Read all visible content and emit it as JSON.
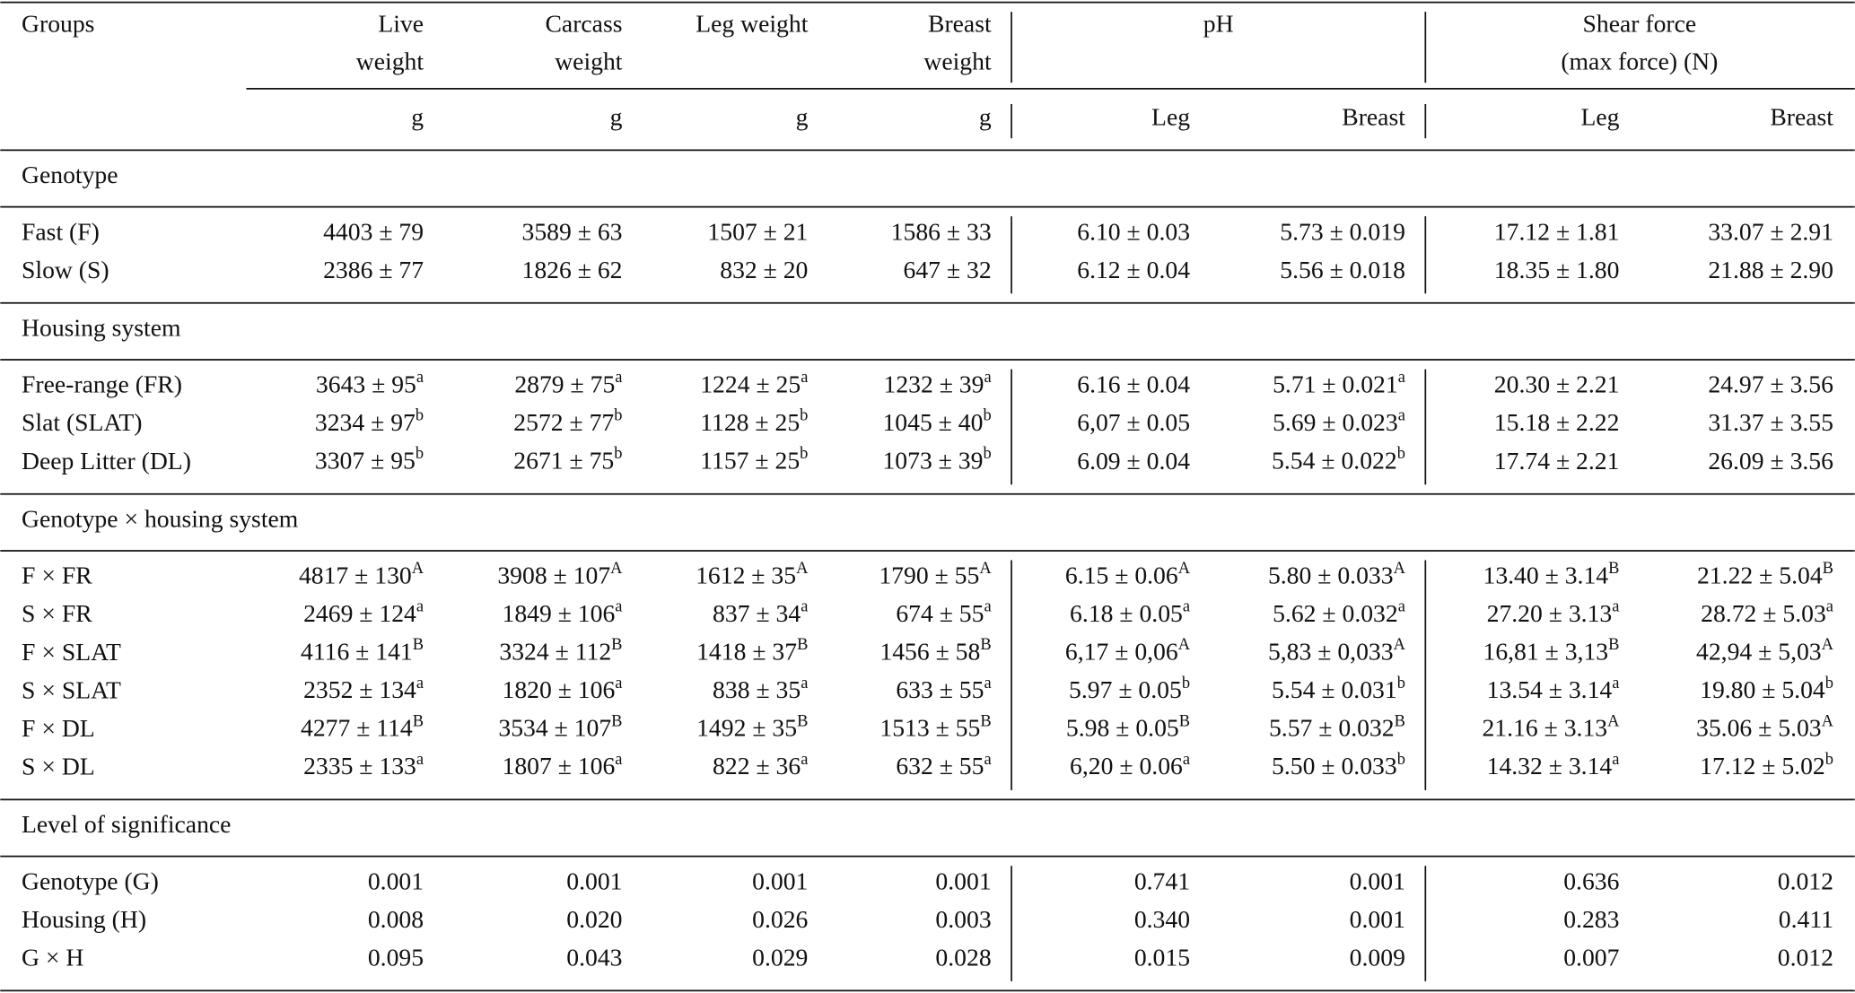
{
  "header": {
    "groups": "Groups",
    "weights": [
      [
        "Live",
        "weight"
      ],
      [
        "Carcass",
        "weight"
      ],
      [
        "Leg weight"
      ],
      [
        "Breast",
        "weight"
      ]
    ],
    "ph": "pH",
    "shear_force": [
      "Shear force",
      "(max force) (N)"
    ]
  },
  "units": [
    "g",
    "g",
    "g",
    "g",
    "Leg",
    "Breast",
    "Leg",
    "Breast"
  ],
  "sections": [
    {
      "title": "Genotype",
      "rows": [
        {
          "label": "Fast (F)",
          "cells": [
            "4403 ± 79",
            "3589 ± 63",
            "1507 ± 21",
            "1586 ± 33",
            "6.10 ± 0.03",
            "5.73 ± 0.019",
            "17.12 ± 1.81",
            "33.07 ± 2.91"
          ]
        },
        {
          "label": "Slow (S)",
          "cells": [
            "2386 ± 77",
            "1826 ± 62",
            "832 ± 20",
            "647 ± 32",
            "6.12 ± 0.04",
            "5.56 ± 0.018",
            "18.35 ± 1.80",
            "21.88 ± 2.90"
          ]
        }
      ]
    },
    {
      "title": "Housing system",
      "rows": [
        {
          "label": "Free-range (FR)",
          "cells": [
            {
              "text": "3643 ± 95",
              "sup": "a"
            },
            {
              "text": "2879 ± 75",
              "sup": "a"
            },
            {
              "text": "1224 ± 25",
              "sup": "a"
            },
            {
              "text": "1232 ± 39",
              "sup": "a"
            },
            "6.16 ± 0.04",
            {
              "text": "5.71 ± 0.021",
              "sup": "a"
            },
            "20.30 ± 2.21",
            "24.97 ± 3.56"
          ]
        },
        {
          "label": "Slat (SLAT)",
          "cells": [
            {
              "text": "3234 ± 97",
              "sup": "b"
            },
            {
              "text": "2572 ± 77",
              "sup": "b"
            },
            {
              "text": "1128 ± 25",
              "sup": "b"
            },
            {
              "text": "1045 ± 40",
              "sup": "b"
            },
            "6,07 ± 0.05",
            {
              "text": "5.69 ± 0.023",
              "sup": "a"
            },
            "15.18 ± 2.22",
            "31.37 ± 3.55"
          ]
        },
        {
          "label": "Deep Litter (DL)",
          "cells": [
            {
              "text": "3307 ± 95",
              "sup": "b"
            },
            {
              "text": "2671 ± 75",
              "sup": "b"
            },
            {
              "text": "1157 ± 25",
              "sup": "b"
            },
            {
              "text": "1073 ± 39",
              "sup": "b"
            },
            "6.09 ± 0.04",
            {
              "text": "5.54 ± 0.022",
              "sup": "b"
            },
            "17.74 ± 2.21",
            "26.09 ± 3.56"
          ]
        }
      ]
    },
    {
      "title": "Genotype × housing system",
      "rows": [
        {
          "label": "F × FR",
          "cells": [
            {
              "text": "4817 ± 130",
              "sup": "A"
            },
            {
              "text": "3908 ± 107",
              "sup": "A"
            },
            {
              "text": "1612 ± 35",
              "sup": "A"
            },
            {
              "text": "1790 ± 55",
              "sup": "A"
            },
            {
              "text": "6.15 ± 0.06",
              "sup": "A"
            },
            {
              "text": "5.80 ± 0.033",
              "sup": "A"
            },
            {
              "text": "13.40 ± 3.14",
              "sup": "B"
            },
            {
              "text": "21.22 ± 5.04",
              "sup": "B"
            }
          ]
        },
        {
          "label": "S × FR",
          "cells": [
            {
              "text": "2469 ± 124",
              "sup": "a"
            },
            {
              "text": "1849 ± 106",
              "sup": "a"
            },
            {
              "text": "837 ± 34",
              "sup": "a"
            },
            {
              "text": "674 ± 55",
              "sup": "a"
            },
            {
              "text": "6.18 ± 0.05",
              "sup": "a"
            },
            {
              "text": "5.62 ± 0.032",
              "sup": "a"
            },
            {
              "text": "27.20 ± 3.13",
              "sup": "a"
            },
            {
              "text": "28.72 ± 5.03",
              "sup": "a"
            }
          ]
        },
        {
          "label": "F × SLAT",
          "cells": [
            {
              "text": "4116 ± 141",
              "sup": "B"
            },
            {
              "text": "3324 ± 112",
              "sup": "B"
            },
            {
              "text": "1418 ± 37",
              "sup": "B"
            },
            {
              "text": "1456 ± 58",
              "sup": "B"
            },
            {
              "text": "6,17 ± 0,06",
              "sup": "A"
            },
            {
              "text": "5,83 ± 0,033",
              "sup": "A"
            },
            {
              "text": "16,81 ± 3,13",
              "sup": "B"
            },
            {
              "text": "42,94 ± 5,03",
              "sup": "A"
            }
          ]
        },
        {
          "label": "S × SLAT",
          "cells": [
            {
              "text": "2352 ± 134",
              "sup": "a"
            },
            {
              "text": "1820 ± 106",
              "sup": "a"
            },
            {
              "text": "838 ± 35",
              "sup": "a"
            },
            {
              "text": "633 ± 55",
              "sup": "a"
            },
            {
              "text": "5.97 ± 0.05",
              "sup": "b"
            },
            {
              "text": "5.54 ± 0.031",
              "sup": "b"
            },
            {
              "text": "13.54 ± 3.14",
              "sup": "a"
            },
            {
              "text": "19.80 ± 5.04",
              "sup": "b"
            }
          ]
        },
        {
          "label": "F × DL",
          "cells": [
            {
              "text": "4277 ± 114",
              "sup": "B"
            },
            {
              "text": "3534 ± 107",
              "sup": "B"
            },
            {
              "text": "1492 ± 35",
              "sup": "B"
            },
            {
              "text": "1513 ± 55",
              "sup": "B"
            },
            {
              "text": "5.98 ± 0.05",
              "sup": "B"
            },
            {
              "text": "5.57 ± 0.032",
              "sup": "B"
            },
            {
              "text": "21.16 ± 3.13",
              "sup": "A"
            },
            {
              "text": "35.06 ± 5.03",
              "sup": "A"
            }
          ]
        },
        {
          "label": "S × DL",
          "cells": [
            {
              "text": "2335 ± 133",
              "sup": "a"
            },
            {
              "text": "1807 ± 106",
              "sup": "a"
            },
            {
              "text": "822 ± 36",
              "sup": "a"
            },
            {
              "text": "632 ± 55",
              "sup": "a"
            },
            {
              "text": "6,20 ± 0.06",
              "sup": "a"
            },
            {
              "text": "5.50 ± 0.033",
              "sup": "b"
            },
            {
              "text": "14.32 ± 3.14",
              "sup": "a"
            },
            {
              "text": "17.12 ± 5.02",
              "sup": "b"
            }
          ]
        }
      ]
    },
    {
      "title": "Level of significance",
      "rows": [
        {
          "label": "Genotype (G)",
          "cells": [
            "0.001",
            "0.001",
            "0.001",
            "0.001",
            "0.741",
            "0.001",
            "0.636",
            "0.012"
          ]
        },
        {
          "label": "Housing (H)",
          "cells": [
            "0.008",
            "0.020",
            "0.026",
            "0.003",
            "0.340",
            "0.001",
            "0.283",
            "0.411"
          ]
        },
        {
          "label": "G × H",
          "cells": [
            "0.095",
            "0.043",
            "0.029",
            "0.028",
            "0.015",
            "0.009",
            "0.007",
            "0.012"
          ]
        }
      ]
    }
  ]
}
